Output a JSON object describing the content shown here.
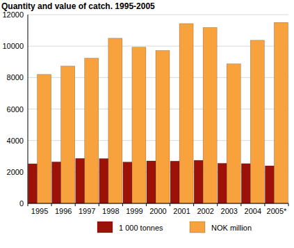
{
  "chart_data": {
    "type": "bar",
    "title": "Quantity and value of catch. 1995-2005",
    "categories": [
      "1995",
      "1996",
      "1997",
      "1998",
      "1999",
      "2000",
      "2001",
      "2002",
      "2003",
      "2004",
      "2005*"
    ],
    "series": [
      {
        "name": "1 000 tonnes",
        "color": "#9c1208",
        "values": [
          2520,
          2640,
          2860,
          2850,
          2630,
          2700,
          2690,
          2740,
          2550,
          2530,
          2390
        ]
      },
      {
        "name": "NOK million",
        "color": "#f7a23c",
        "values": [
          8200,
          8730,
          9230,
          10500,
          9930,
          9720,
          11430,
          11180,
          8870,
          10370,
          11500
        ]
      }
    ],
    "ylim": [
      0,
      12000
    ],
    "yticks": [
      0,
      2000,
      4000,
      6000,
      8000,
      10000,
      12000
    ],
    "grid": true,
    "legend": "bottom"
  }
}
